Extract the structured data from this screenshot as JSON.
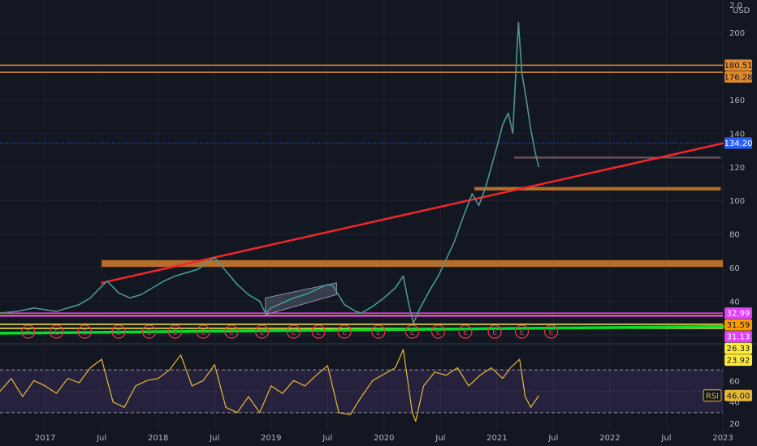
{
  "chart_data": [
    {
      "type": "line",
      "name": "price-panel",
      "currency": "USD",
      "corner_label": "2.0",
      "ylim": [
        14,
        212
      ],
      "y_ticks": [
        20,
        40,
        60,
        80,
        100,
        120,
        140,
        160,
        180,
        200
      ],
      "x_range": [
        2016.6,
        2023.0
      ],
      "x_ticks": [
        {
          "t": 2017.0,
          "label": "2017"
        },
        {
          "t": 2017.5,
          "label": "Jul"
        },
        {
          "t": 2018.0,
          "label": "2018"
        },
        {
          "t": 2018.5,
          "label": "Jul"
        },
        {
          "t": 2019.0,
          "label": "2019"
        },
        {
          "t": 2019.5,
          "label": "Jul"
        },
        {
          "t": 2020.0,
          "label": "2020"
        },
        {
          "t": 2020.5,
          "label": "Jul"
        },
        {
          "t": 2021.0,
          "label": "2021"
        },
        {
          "t": 2021.5,
          "label": "Jul"
        },
        {
          "t": 2022.0,
          "label": "2022"
        },
        {
          "t": 2022.5,
          "label": "Jul"
        },
        {
          "t": 2023.0,
          "label": "2023"
        }
      ],
      "price_path": [
        [
          2016.6,
          33
        ],
        [
          2016.75,
          34
        ],
        [
          2016.9,
          36
        ],
        [
          2017.0,
          35
        ],
        [
          2017.1,
          34
        ],
        [
          2017.2,
          36
        ],
        [
          2017.3,
          38
        ],
        [
          2017.4,
          42
        ],
        [
          2017.5,
          49
        ],
        [
          2017.55,
          52
        ],
        [
          2017.65,
          45
        ],
        [
          2017.75,
          42
        ],
        [
          2017.85,
          44
        ],
        [
          2017.95,
          48
        ],
        [
          2018.05,
          52
        ],
        [
          2018.15,
          55
        ],
        [
          2018.25,
          57
        ],
        [
          2018.35,
          59
        ],
        [
          2018.45,
          64
        ],
        [
          2018.5,
          66
        ],
        [
          2018.55,
          62
        ],
        [
          2018.6,
          58
        ],
        [
          2018.7,
          50
        ],
        [
          2018.8,
          44
        ],
        [
          2018.9,
          40
        ],
        [
          2018.95,
          33
        ],
        [
          2019.0,
          36
        ],
        [
          2019.1,
          39
        ],
        [
          2019.2,
          42
        ],
        [
          2019.3,
          44
        ],
        [
          2019.4,
          47
        ],
        [
          2019.5,
          50
        ],
        [
          2019.55,
          49
        ],
        [
          2019.65,
          38
        ],
        [
          2019.75,
          34
        ],
        [
          2019.8,
          33
        ],
        [
          2019.9,
          37
        ],
        [
          2020.0,
          42
        ],
        [
          2020.1,
          48
        ],
        [
          2020.17,
          55
        ],
        [
          2020.22,
          38
        ],
        [
          2020.26,
          27
        ],
        [
          2020.32,
          36
        ],
        [
          2020.4,
          46
        ],
        [
          2020.48,
          55
        ],
        [
          2020.55,
          65
        ],
        [
          2020.62,
          75
        ],
        [
          2020.7,
          90
        ],
        [
          2020.78,
          104
        ],
        [
          2020.84,
          97
        ],
        [
          2020.9,
          108
        ],
        [
          2020.95,
          120
        ],
        [
          2021.0,
          132
        ],
        [
          2021.05,
          145
        ],
        [
          2021.1,
          152
        ],
        [
          2021.14,
          140
        ],
        [
          2021.17,
          180
        ],
        [
          2021.19,
          206
        ],
        [
          2021.22,
          176
        ],
        [
          2021.26,
          160
        ],
        [
          2021.3,
          142
        ],
        [
          2021.34,
          128
        ],
        [
          2021.37,
          120
        ]
      ],
      "horizontal_levels": [
        {
          "value": 180.51,
          "color": "#e08a2c",
          "badge_text": "#131722"
        },
        {
          "value": 176.28,
          "color": "#e08a2c",
          "badge_text": "#131722"
        },
        {
          "value": 134.2,
          "color": "#2962ff",
          "badge_text": "#ffffff",
          "dotted": true
        },
        {
          "value": 32.99,
          "color": "#e040fb",
          "badge_text": "#ffffff"
        },
        {
          "value": 31.59,
          "color": "#ff9800",
          "badge_text": "#131722"
        },
        {
          "value": 31.13,
          "color": "#e040fb",
          "badge_text": "#ffffff"
        },
        {
          "value": 26.33,
          "color": "#ffeb3b",
          "badge_text": "#131722"
        },
        {
          "value": 23.92,
          "color": "#ffeb3b",
          "badge_text": "#131722"
        }
      ],
      "zones": [
        {
          "t0": 2017.5,
          "t1": 2023.0,
          "y0": 60.5,
          "y1": 64.5,
          "color": "#b86e2a"
        },
        {
          "t0": 2020.8,
          "t1": 2022.98,
          "y0": 106,
          "y1": 108,
          "color": "#b86e2a"
        },
        {
          "t0": 2021.15,
          "t1": 2022.98,
          "y0": 125,
          "y1": 126,
          "color": "#7b5c62"
        }
      ],
      "channel": {
        "t0": 2018.95,
        "t1": 2019.58,
        "low": [
          32,
          44
        ],
        "high": [
          42,
          51
        ]
      },
      "trendlines": [
        {
          "p1": [
            2017.5,
            51
          ],
          "p2": [
            2023.0,
            134
          ],
          "color": "#f0262c",
          "width": 2.5
        },
        {
          "p1": [
            2016.6,
            21
          ],
          "p2": [
            2023.0,
            25
          ],
          "color": "#00e02c",
          "width": 3.5
        }
      ],
      "earnings_markers": [
        2016.85,
        2017.1,
        2017.35,
        2017.65,
        2017.92,
        2018.15,
        2018.4,
        2018.65,
        2018.92,
        2019.2,
        2019.42,
        2019.65,
        2019.95,
        2020.25,
        2020.48,
        2020.72,
        2020.98,
        2021.22,
        2021.48
      ],
      "earnings_marker_label": "E"
    },
    {
      "type": "line",
      "name": "rsi-panel",
      "series_label": "RSI",
      "last_value": "46.00",
      "ylim": [
        17,
        91
      ],
      "y_ticks": [
        20,
        40,
        60,
        80
      ],
      "band": [
        30,
        70
      ],
      "rsi_path": [
        [
          2016.6,
          50
        ],
        [
          2016.7,
          62
        ],
        [
          2016.8,
          45
        ],
        [
          2016.9,
          60
        ],
        [
          2017.0,
          55
        ],
        [
          2017.1,
          48
        ],
        [
          2017.2,
          62
        ],
        [
          2017.3,
          58
        ],
        [
          2017.4,
          72
        ],
        [
          2017.5,
          80
        ],
        [
          2017.6,
          40
        ],
        [
          2017.7,
          35
        ],
        [
          2017.8,
          55
        ],
        [
          2017.9,
          60
        ],
        [
          2018.0,
          62
        ],
        [
          2018.1,
          70
        ],
        [
          2018.2,
          84
        ],
        [
          2018.3,
          55
        ],
        [
          2018.4,
          60
        ],
        [
          2018.5,
          75
        ],
        [
          2018.6,
          35
        ],
        [
          2018.7,
          30
        ],
        [
          2018.8,
          45
        ],
        [
          2018.9,
          30
        ],
        [
          2019.0,
          55
        ],
        [
          2019.1,
          48
        ],
        [
          2019.2,
          60
        ],
        [
          2019.3,
          55
        ],
        [
          2019.4,
          65
        ],
        [
          2019.5,
          74
        ],
        [
          2019.6,
          30
        ],
        [
          2019.7,
          28
        ],
        [
          2019.8,
          45
        ],
        [
          2019.9,
          60
        ],
        [
          2020.0,
          66
        ],
        [
          2020.1,
          72
        ],
        [
          2020.17,
          89
        ],
        [
          2020.25,
          30
        ],
        [
          2020.28,
          22
        ],
        [
          2020.35,
          55
        ],
        [
          2020.45,
          68
        ],
        [
          2020.55,
          65
        ],
        [
          2020.65,
          72
        ],
        [
          2020.75,
          55
        ],
        [
          2020.85,
          65
        ],
        [
          2020.95,
          72
        ],
        [
          2021.05,
          62
        ],
        [
          2021.12,
          72
        ],
        [
          2021.2,
          80
        ],
        [
          2021.25,
          45
        ],
        [
          2021.3,
          35
        ],
        [
          2021.37,
          46
        ]
      ]
    }
  ]
}
